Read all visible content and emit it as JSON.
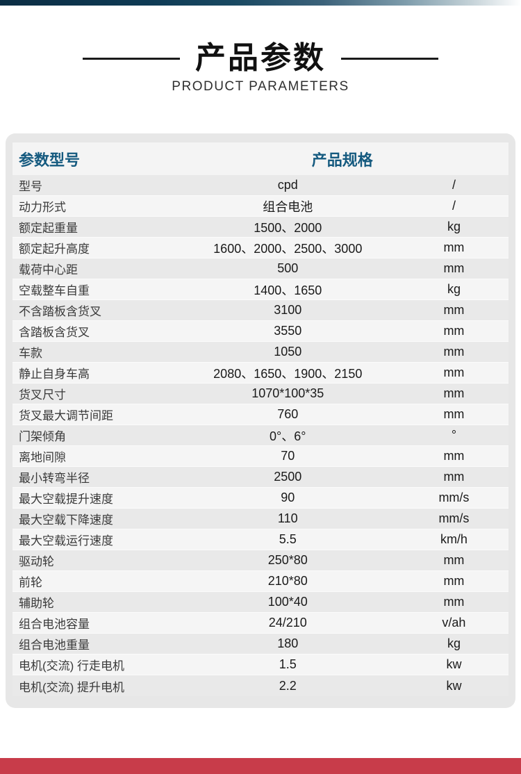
{
  "page": {
    "title": "产品参数",
    "subtitle": "PRODUCT PARAMETERS"
  },
  "table": {
    "header": {
      "left": "参数型号",
      "right": "产品规格"
    },
    "rows": [
      {
        "label": "型号",
        "value": "cpd",
        "unit": "/"
      },
      {
        "label": "动力形式",
        "value": "组合电池",
        "unit": "/"
      },
      {
        "label": "额定起重量",
        "value": "1500、2000",
        "unit": "kg"
      },
      {
        "label": "额定起升高度",
        "value": "1600、2000、2500、3000",
        "unit": "mm"
      },
      {
        "label": "载荷中心距",
        "value": "500",
        "unit": "mm"
      },
      {
        "label": "空载整车自重",
        "value": "1400、1650",
        "unit": "kg"
      },
      {
        "label": "不含踏板含货叉",
        "value": "3100",
        "unit": "mm"
      },
      {
        "label": "含踏板含货叉",
        "value": "3550",
        "unit": "mm"
      },
      {
        "label": "车款",
        "value": "1050",
        "unit": "mm"
      },
      {
        "label": "静止自身车高",
        "value": "2080、1650、1900、2150",
        "unit": "mm"
      },
      {
        "label": "货叉尺寸",
        "value": "1070*100*35",
        "unit": "mm"
      },
      {
        "label": "货叉最大调节间距",
        "value": "760",
        "unit": "mm"
      },
      {
        "label": "门架倾角",
        "value": "0°、6°",
        "unit": "°"
      },
      {
        "label": "离地间隙",
        "value": "70",
        "unit": "mm"
      },
      {
        "label": "最小转弯半径",
        "value": "2500",
        "unit": "mm"
      },
      {
        "label": "最大空载提升速度",
        "value": "90",
        "unit": "mm/s"
      },
      {
        "label": "最大空载下降速度",
        "value": "110",
        "unit": "mm/s"
      },
      {
        "label": "最大空载运行速度",
        "value": "5.5",
        "unit": "km/h"
      },
      {
        "label": "驱动轮",
        "value": "250*80",
        "unit": "mm"
      },
      {
        "label": "前轮",
        "value": "210*80",
        "unit": "mm"
      },
      {
        "label": "辅助轮",
        "value": "100*40",
        "unit": "mm"
      },
      {
        "label": "组合电池容量",
        "value": "24/210",
        "unit": "v/ah"
      },
      {
        "label": "组合电池重量",
        "value": "180",
        "unit": "kg"
      },
      {
        "label": "电机(交流) 行走电机",
        "value": "1.5",
        "unit": "kw"
      },
      {
        "label": "电机(交流) 提升电机",
        "value": "2.2",
        "unit": "kw"
      }
    ]
  },
  "colors": {
    "header_text": "#155a7f",
    "card_bg": "#e7e7e7",
    "row_odd": "#e9e9e9",
    "row_even": "#f5f5f5",
    "bottom_bar": "#c83c4a",
    "top_bar_dark": "#0b2d43",
    "title_text": "#111111"
  }
}
